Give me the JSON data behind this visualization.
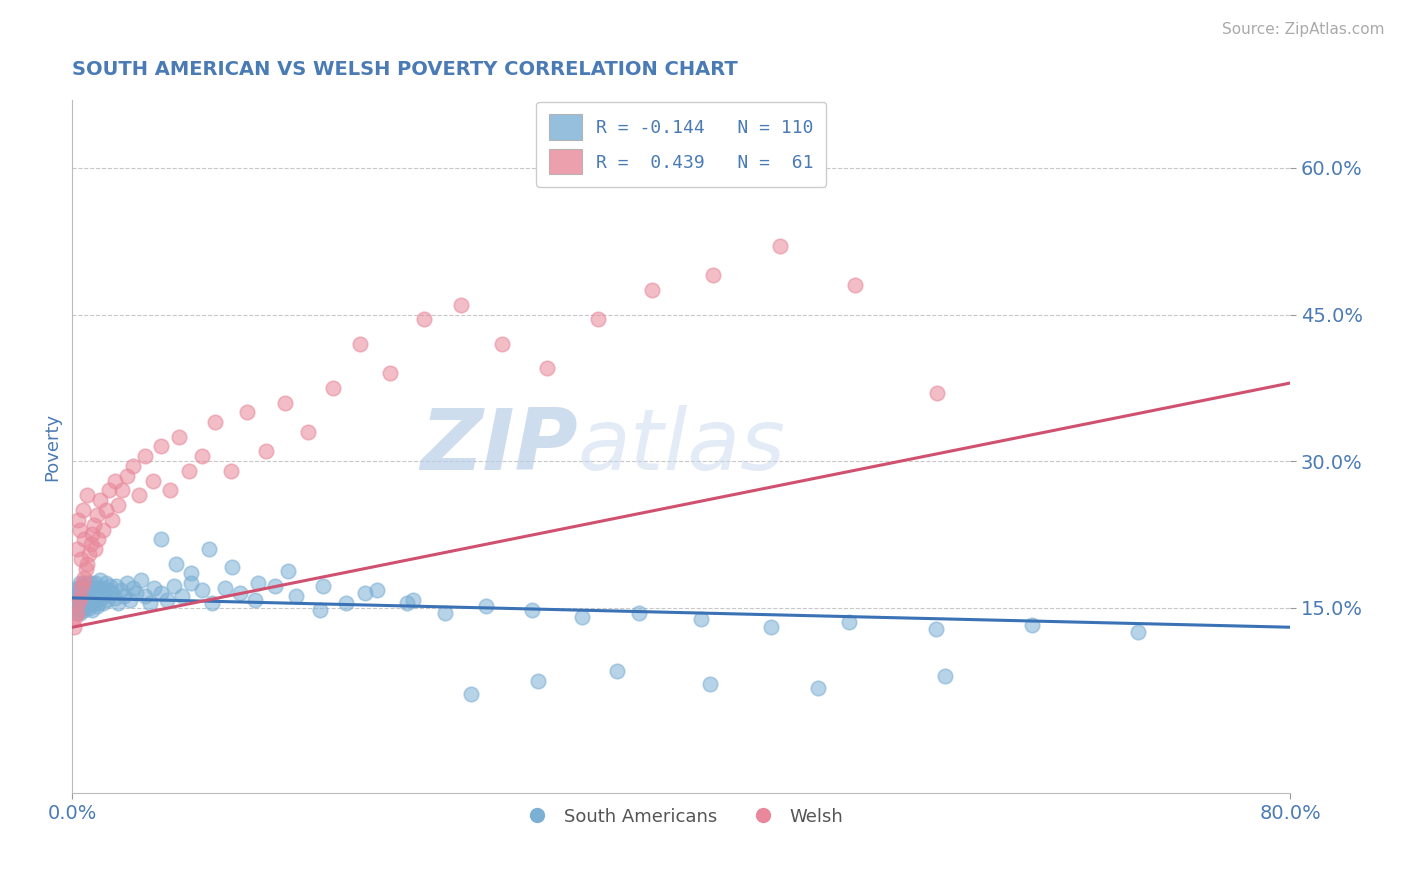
{
  "title": "SOUTH AMERICAN VS WELSH POVERTY CORRELATION CHART",
  "source": "Source: ZipAtlas.com",
  "ylabel": "Poverty",
  "y_ticks": [
    0.15,
    0.3,
    0.45,
    0.6
  ],
  "y_tick_labels": [
    "15.0%",
    "30.0%",
    "45.0%",
    "60.0%"
  ],
  "x_min": 0.0,
  "x_max": 0.8,
  "y_min": -0.04,
  "y_max": 0.67,
  "blue_color": "#7bafd4",
  "pink_color": "#e8889a",
  "blue_line_color": "#3a72b5",
  "pink_line_color": "#d05070",
  "r_blue": -0.144,
  "n_blue": 110,
  "r_pink": 0.439,
  "n_pink": 61,
  "legend_label_blue": "South Americans",
  "legend_label_pink": "Welsh",
  "title_color": "#4a7bb5",
  "axis_label_color": "#4a7bb5",
  "tick_label_color": "#4a7bb5",
  "watermark_color": "#d0dce8",
  "grid_color": "#c8c8c8",
  "background_color": "#ffffff",
  "blue_scatter_x": [
    0.001,
    0.002,
    0.002,
    0.003,
    0.003,
    0.003,
    0.004,
    0.004,
    0.004,
    0.005,
    0.005,
    0.005,
    0.005,
    0.006,
    0.006,
    0.006,
    0.007,
    0.007,
    0.007,
    0.008,
    0.008,
    0.008,
    0.009,
    0.009,
    0.009,
    0.01,
    0.01,
    0.01,
    0.011,
    0.011,
    0.012,
    0.012,
    0.012,
    0.013,
    0.013,
    0.014,
    0.014,
    0.015,
    0.015,
    0.016,
    0.016,
    0.017,
    0.017,
    0.018,
    0.018,
    0.019,
    0.02,
    0.02,
    0.021,
    0.022,
    0.023,
    0.024,
    0.025,
    0.026,
    0.028,
    0.029,
    0.03,
    0.032,
    0.034,
    0.036,
    0.038,
    0.04,
    0.042,
    0.045,
    0.048,
    0.051,
    0.054,
    0.058,
    0.062,
    0.067,
    0.072,
    0.078,
    0.085,
    0.092,
    0.1,
    0.11,
    0.12,
    0.133,
    0.147,
    0.163,
    0.18,
    0.2,
    0.22,
    0.245,
    0.272,
    0.302,
    0.335,
    0.372,
    0.413,
    0.459,
    0.51,
    0.567,
    0.63,
    0.7,
    0.058,
    0.068,
    0.078,
    0.09,
    0.105,
    0.122,
    0.142,
    0.165,
    0.192,
    0.224,
    0.262,
    0.306,
    0.358,
    0.419,
    0.49,
    0.573
  ],
  "blue_scatter_y": [
    0.155,
    0.15,
    0.16,
    0.145,
    0.158,
    0.165,
    0.148,
    0.162,
    0.17,
    0.152,
    0.168,
    0.175,
    0.145,
    0.155,
    0.163,
    0.172,
    0.15,
    0.16,
    0.17,
    0.148,
    0.158,
    0.168,
    0.152,
    0.162,
    0.172,
    0.155,
    0.165,
    0.175,
    0.15,
    0.16,
    0.155,
    0.165,
    0.175,
    0.148,
    0.162,
    0.155,
    0.17,
    0.16,
    0.175,
    0.152,
    0.168,
    0.155,
    0.17,
    0.16,
    0.178,
    0.165,
    0.155,
    0.17,
    0.162,
    0.175,
    0.158,
    0.168,
    0.172,
    0.165,
    0.16,
    0.172,
    0.155,
    0.168,
    0.162,
    0.175,
    0.158,
    0.17,
    0.165,
    0.178,
    0.162,
    0.155,
    0.17,
    0.165,
    0.158,
    0.172,
    0.162,
    0.175,
    0.168,
    0.155,
    0.17,
    0.165,
    0.158,
    0.172,
    0.162,
    0.148,
    0.155,
    0.168,
    0.155,
    0.145,
    0.152,
    0.148,
    0.14,
    0.145,
    0.138,
    0.13,
    0.135,
    0.128,
    0.132,
    0.125,
    0.22,
    0.195,
    0.185,
    0.21,
    0.192,
    0.175,
    0.188,
    0.172,
    0.165,
    0.158,
    0.062,
    0.075,
    0.085,
    0.072,
    0.068,
    0.08
  ],
  "pink_scatter_x": [
    0.001,
    0.002,
    0.003,
    0.003,
    0.004,
    0.004,
    0.005,
    0.005,
    0.006,
    0.006,
    0.007,
    0.007,
    0.008,
    0.008,
    0.009,
    0.01,
    0.01,
    0.011,
    0.012,
    0.013,
    0.014,
    0.015,
    0.016,
    0.017,
    0.018,
    0.02,
    0.022,
    0.024,
    0.026,
    0.028,
    0.03,
    0.033,
    0.036,
    0.04,
    0.044,
    0.048,
    0.053,
    0.058,
    0.064,
    0.07,
    0.077,
    0.085,
    0.094,
    0.104,
    0.115,
    0.127,
    0.14,
    0.155,
    0.171,
    0.189,
    0.209,
    0.231,
    0.255,
    0.282,
    0.312,
    0.345,
    0.381,
    0.421,
    0.465,
    0.514,
    0.568
  ],
  "pink_scatter_y": [
    0.13,
    0.14,
    0.145,
    0.21,
    0.155,
    0.24,
    0.16,
    0.23,
    0.17,
    0.2,
    0.175,
    0.25,
    0.18,
    0.22,
    0.19,
    0.195,
    0.265,
    0.205,
    0.215,
    0.225,
    0.235,
    0.21,
    0.245,
    0.22,
    0.26,
    0.23,
    0.25,
    0.27,
    0.24,
    0.28,
    0.255,
    0.27,
    0.285,
    0.295,
    0.265,
    0.305,
    0.28,
    0.315,
    0.27,
    0.325,
    0.29,
    0.305,
    0.34,
    0.29,
    0.35,
    0.31,
    0.36,
    0.33,
    0.375,
    0.42,
    0.39,
    0.445,
    0.46,
    0.42,
    0.395,
    0.445,
    0.475,
    0.49,
    0.52,
    0.48,
    0.37
  ],
  "blue_trend_x0": 0.0,
  "blue_trend_x1": 0.8,
  "blue_trend_y0": 0.16,
  "blue_trend_y1": 0.13,
  "pink_trend_x0": 0.0,
  "pink_trend_x1": 0.8,
  "pink_trend_y0": 0.13,
  "pink_trend_y1": 0.38
}
